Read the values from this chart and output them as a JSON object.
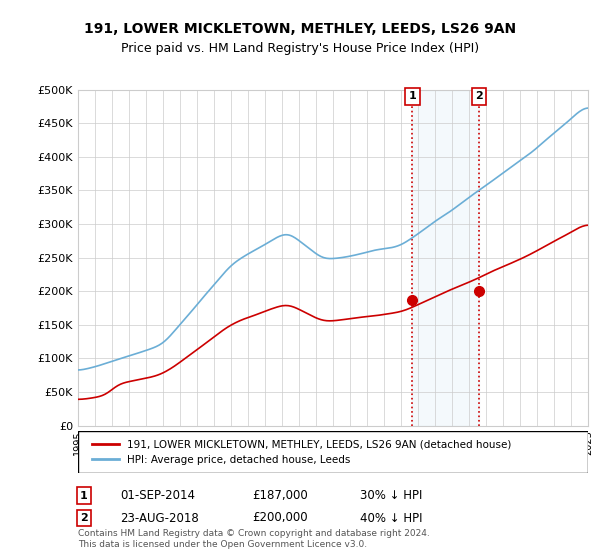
{
  "title1": "191, LOWER MICKLETOWN, METHLEY, LEEDS, LS26 9AN",
  "title2": "Price paid vs. HM Land Registry's House Price Index (HPI)",
  "legend1": "191, LOWER MICKLETOWN, METHLEY, LEEDS, LS26 9AN (detached house)",
  "legend2": "HPI: Average price, detached house, Leeds",
  "annotation1": {
    "label": "1",
    "date": "01-SEP-2014",
    "price": "£187,000",
    "note": "30% ↓ HPI"
  },
  "annotation2": {
    "label": "2",
    "date": "23-AUG-2018",
    "price": "£200,000",
    "note": "40% ↓ HPI"
  },
  "footer": "Contains HM Land Registry data © Crown copyright and database right 2024.\nThis data is licensed under the Open Government Licence v3.0.",
  "hpi_color": "#6baed6",
  "price_color": "#cc0000",
  "marker1_color": "#cc0000",
  "marker2_color": "#cc0000",
  "vline_color": "#cc0000",
  "shade_color": "#d6e8f5",
  "ylim": [
    0,
    500000
  ],
  "yticks": [
    0,
    50000,
    100000,
    150000,
    200000,
    250000,
    300000,
    350000,
    400000,
    450000,
    500000
  ],
  "year_start": 1995,
  "year_end": 2025
}
